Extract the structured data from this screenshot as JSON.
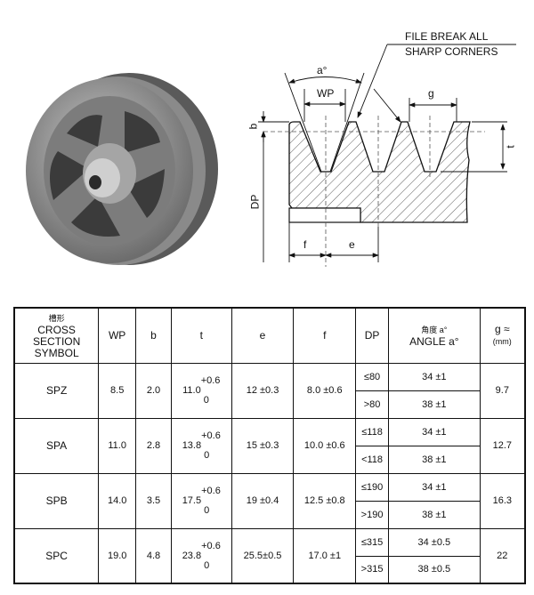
{
  "drawing": {
    "note_line1": "FILE BREAK ALL",
    "note_line2": "SHARP CORNERS",
    "labels": {
      "angle": "a°",
      "wp": "WP",
      "g": "g",
      "b": "b",
      "t": "t",
      "dp": "DP",
      "f": "f",
      "e": "e"
    }
  },
  "table": {
    "headers": {
      "symbol_cn": "槽形",
      "symbol_en1": "CROSS",
      "symbol_en2": "SECTION",
      "symbol_en3": "SYMBOL",
      "wp": "WP",
      "b": "b",
      "t": "t",
      "e": "e",
      "f": "f",
      "dp": "DP",
      "angle_cn": "角度 a°",
      "angle_en": "ANGLE a°",
      "g": "g ≈",
      "g_unit": "(mm)"
    },
    "rows": [
      {
        "symbol": "SPZ",
        "wp": "8.5",
        "b": "2.0",
        "t": "11.0",
        "t_upper": "+0.6",
        "t_lower": "0",
        "e": "12 ±0.3",
        "f": "8.0 ±0.6",
        "dp1": "≤80",
        "angle1": "34 ±1",
        "dp2": ">80",
        "angle2": "38 ±1",
        "g": "9.7"
      },
      {
        "symbol": "SPA",
        "wp": "11.0",
        "b": "2.8",
        "t": "13.8",
        "t_upper": "+0.6",
        "t_lower": "0",
        "e": "15 ±0.3",
        "f": "10.0 ±0.6",
        "dp1": "≤118",
        "angle1": "34 ±1",
        "dp2": "<118",
        "angle2": "38 ±1",
        "g": "12.7"
      },
      {
        "symbol": "SPB",
        "wp": "14.0",
        "b": "3.5",
        "t": "17.5",
        "t_upper": "+0.6",
        "t_lower": "0",
        "e": "19 ±0.4",
        "f": "12.5 ±0.8",
        "dp1": "≤190",
        "angle1": "34 ±1",
        "dp2": ">190",
        "angle2": "38 ±1",
        "g": "16.3"
      },
      {
        "symbol": "SPC",
        "wp": "19.0",
        "b": "4.8",
        "t": "23.8",
        "t_upper": "+0.6",
        "t_lower": "0",
        "e": "25.5±0.5",
        "f": "17.0 ±1",
        "dp1": "≤315",
        "angle1": "34 ±0.5",
        "dp2": ">315",
        "angle2": "38 ±0.5",
        "g": "22"
      }
    ]
  }
}
